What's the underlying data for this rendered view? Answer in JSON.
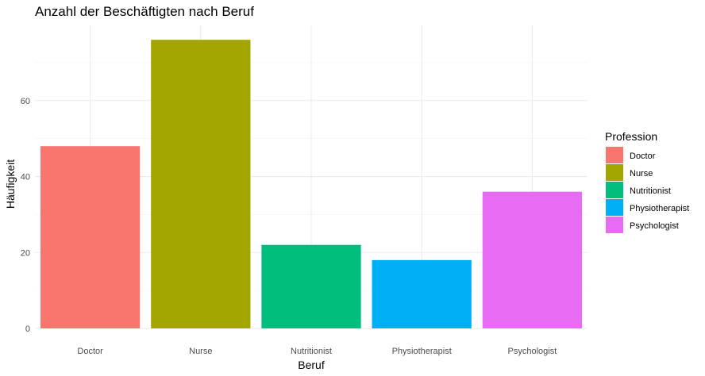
{
  "chart_data": {
    "type": "bar",
    "title": "Anzahl der Beschäftigten nach Beruf",
    "xlabel": "Beruf",
    "ylabel": "Häufigkeit",
    "categories": [
      "Doctor",
      "Nurse",
      "Nutritionist",
      "Physiotherapist",
      "Psychologist"
    ],
    "values": [
      48,
      76,
      22,
      18,
      36
    ],
    "colors": [
      "#F8766D",
      "#A3A500",
      "#00BF7D",
      "#00B0F6",
      "#E76BF3"
    ],
    "ylim": [
      0,
      80
    ],
    "yticks": [
      0,
      20,
      40,
      60
    ],
    "grid": true,
    "legend": {
      "title": "Profession",
      "position": "right",
      "entries": [
        "Doctor",
        "Nurse",
        "Nutritionist",
        "Physiotherapist",
        "Psychologist"
      ]
    }
  }
}
